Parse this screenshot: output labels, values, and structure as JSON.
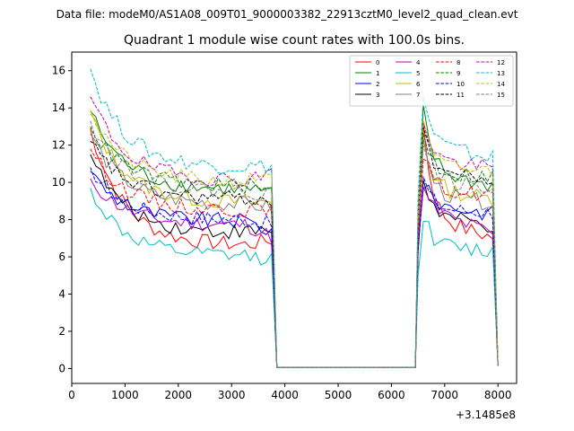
{
  "figure": {
    "suptitle": "Data file: modeM0/AS1A08_009T01_9000003382_22913cztM0_level2_quad_clean.evt"
  },
  "chart_data": {
    "type": "line",
    "title": "Quadrant 1 module wise count rates with 100.0s bins.",
    "xlabel": "",
    "ylabel": "",
    "x_offset_label": "+3.1485e8",
    "xlim": [
      0,
      8350
    ],
    "ylim": [
      -0.8,
      17.0
    ],
    "xticks": [
      0,
      1000,
      2000,
      3000,
      4000,
      5000,
      6000,
      7000,
      8000
    ],
    "yticks": [
      0,
      2,
      4,
      6,
      8,
      10,
      12,
      14,
      16
    ],
    "grid": false,
    "legend_position": "top-right",
    "series": [
      {
        "name": "0",
        "color": "#ff0000",
        "dash": "solid",
        "start": 12.9,
        "plateau": 6.6,
        "end1": 6.9,
        "peak": 13.2,
        "mid2": 8.2,
        "end2": 7.0,
        "final": 0.15
      },
      {
        "name": "1",
        "color": "#008000",
        "dash": "solid",
        "start": 13.8,
        "plateau": 9.6,
        "end1": 9.3,
        "peak": 13.9,
        "mid2": 10.6,
        "end2": 9.8,
        "final": 0.15
      },
      {
        "name": "2",
        "color": "#0000ff",
        "dash": "solid",
        "start": 10.6,
        "plateau": 7.9,
        "end1": 7.3,
        "peak": 10.0,
        "mid2": 8.9,
        "end2": 8.3,
        "final": 0.15
      },
      {
        "name": "3",
        "color": "#000000",
        "dash": "solid",
        "start": 11.5,
        "plateau": 7.3,
        "end1": 7.4,
        "peak": 10.2,
        "mid2": 8.3,
        "end2": 7.6,
        "final": 0.15
      },
      {
        "name": "4",
        "color": "#bf00bf",
        "dash": "solid",
        "start": 10.2,
        "plateau": 7.7,
        "end1": 7.0,
        "peak": 9.6,
        "mid2": 8.7,
        "end2": 7.2,
        "final": 0.15
      },
      {
        "name": "5",
        "color": "#00bfbf",
        "dash": "solid",
        "start": 9.7,
        "plateau": 6.0,
        "end1": 5.9,
        "peak": 8.3,
        "mid2": 6.6,
        "end2": 6.3,
        "final": 0.15
      },
      {
        "name": "6",
        "color": "#bfbf00",
        "dash": "solid",
        "start": 13.7,
        "plateau": 8.9,
        "end1": 8.9,
        "peak": 12.5,
        "mid2": 9.7,
        "end2": 9.1,
        "final": 0.15
      },
      {
        "name": "7",
        "color": "#808080",
        "dash": "solid",
        "start": 12.6,
        "plateau": 8.8,
        "end1": 8.6,
        "peak": 12.2,
        "mid2": 9.3,
        "end2": 8.9,
        "final": 0.15
      },
      {
        "name": "8",
        "color": "#ff0000",
        "dash": "dashed",
        "start": 11.8,
        "plateau": 8.5,
        "end1": 8.4,
        "peak": 11.7,
        "mid2": 9.5,
        "end2": 9.4,
        "final": 0.15
      },
      {
        "name": "9",
        "color": "#008000",
        "dash": "dashed",
        "start": 13.0,
        "plateau": 9.8,
        "end1": 9.5,
        "peak": 12.8,
        "mid2": 10.5,
        "end2": 10.3,
        "final": 0.15
      },
      {
        "name": "10",
        "color": "#0000ff",
        "dash": "dashed",
        "start": 10.8,
        "plateau": 8.0,
        "end1": 7.7,
        "peak": 10.2,
        "mid2": 8.6,
        "end2": 8.4,
        "final": 0.15
      },
      {
        "name": "11",
        "color": "#000000",
        "dash": "dashed",
        "start": 12.2,
        "plateau": 9.1,
        "end1": 9.1,
        "peak": 12.6,
        "mid2": 10.7,
        "end2": 10.1,
        "final": 0.15
      },
      {
        "name": "12",
        "color": "#bf00bf",
        "dash": "dashed",
        "start": 14.6,
        "plateau": 10.1,
        "end1": 10.5,
        "peak": 13.5,
        "mid2": 11.3,
        "end2": 10.7,
        "final": 0.15
      },
      {
        "name": "13",
        "color": "#00bfbf",
        "dash": "dashed",
        "start": 16.1,
        "plateau": 10.8,
        "end1": 10.9,
        "peak": 14.6,
        "mid2": 12.1,
        "end2": 11.3,
        "final": 0.15
      },
      {
        "name": "14",
        "color": "#bfbf00",
        "dash": "dashed",
        "start": 13.9,
        "plateau": 10.0,
        "end1": 10.7,
        "peak": 13.0,
        "mid2": 10.8,
        "end2": 10.6,
        "final": 0.15
      },
      {
        "name": "15",
        "color": "#808080",
        "dash": "dashed",
        "start": 13.3,
        "plateau": 9.5,
        "end1": 9.3,
        "peak": 12.3,
        "mid2": 10.1,
        "end2": 9.7,
        "final": 0.15
      }
    ],
    "segments": {
      "segment1_x": [
        350,
        3800
      ],
      "gap_x": [
        3850,
        6450
      ],
      "gap_value": 0.05,
      "segment2_x": [
        6500,
        7950
      ],
      "final_x": 8000,
      "bin": 100
    }
  }
}
